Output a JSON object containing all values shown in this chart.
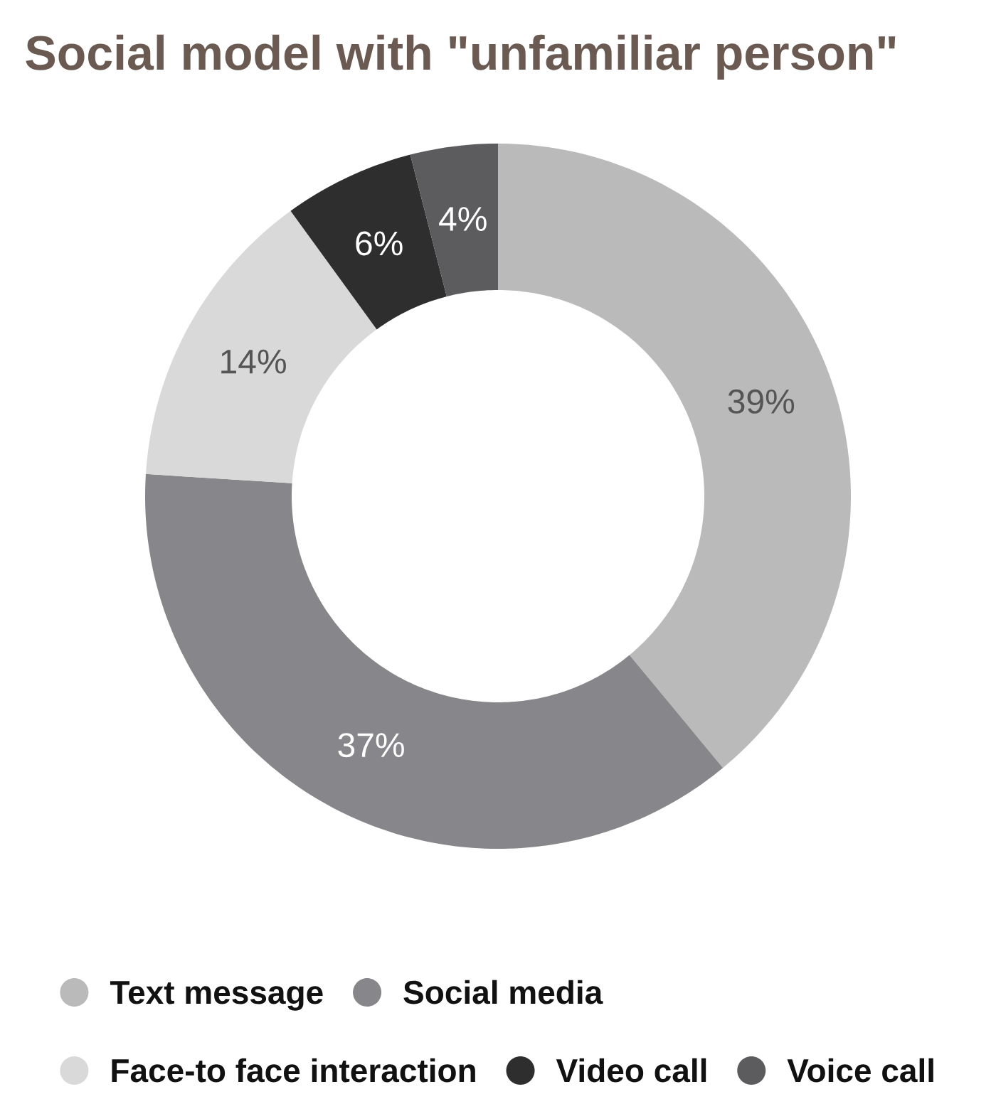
{
  "chart_data": {
    "type": "donut",
    "title": "Social model with \"unfamiliar person\"",
    "categories": [
      "Text message",
      "Social media",
      "Face-to face interaction",
      "Video call",
      "Voice call"
    ],
    "values": [
      39,
      37,
      14,
      6,
      4
    ],
    "colors": [
      "#bababa",
      "#87878b",
      "#d9d9d9",
      "#2e2e2e",
      "#5c5c5f"
    ],
    "value_labels": [
      "39%",
      "37%",
      "14%",
      "6%",
      "4%"
    ],
    "legend": "bottom"
  }
}
